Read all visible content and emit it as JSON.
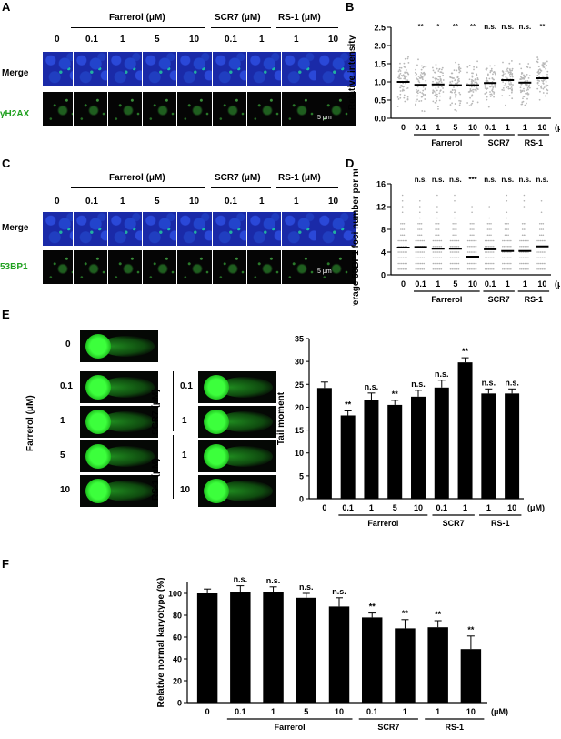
{
  "panels": {
    "A": {
      "label": "A",
      "conc_header": [
        "0",
        "0.1",
        "1",
        "5",
        "10",
        "0.1",
        "1",
        "1",
        "10"
      ],
      "group_farrerol": "Farrerol (μM)",
      "group_scr7": "SCR7 (μM)",
      "group_rs1": "RS-1 (μM)",
      "row_merge": "Merge",
      "row_stain": "γH2AX",
      "scale": "5 μm"
    },
    "C": {
      "label": "C",
      "conc_header": [
        "0",
        "0.1",
        "1",
        "5",
        "10",
        "0.1",
        "1",
        "1",
        "10"
      ],
      "group_farrerol": "Farrerol (μM)",
      "group_scr7": "SCR7 (μM)",
      "group_rs1": "RS-1 (μM)",
      "row_merge": "Merge",
      "row_stain": "53BP1",
      "scale": "5 μm"
    },
    "E": {
      "label": "E",
      "ctrl": "0",
      "farrerol_label": "Farrerol (μM)",
      "farrerol_conc": [
        "0.1",
        "1",
        "5",
        "10"
      ],
      "scr7_label": "SCR7 (μM)",
      "scr7_conc": [
        "0.1",
        "1"
      ],
      "rs1_label": "RS-1 (μM)",
      "rs1_conc": [
        "1",
        "10"
      ]
    },
    "B": {
      "label": "B"
    },
    "D": {
      "label": "D"
    },
    "F": {
      "label": "F"
    }
  },
  "chart_data": [
    {
      "panel": "B",
      "type": "scatter",
      "ylabel": "Relative intensity",
      "ylim": [
        0,
        2.5
      ],
      "yticks": [
        "0.0",
        "0.5",
        "1.0",
        "1.5",
        "2.0",
        "2.5"
      ],
      "categories": [
        "0",
        "0.1",
        "1",
        "5",
        "10",
        "0.1",
        "1",
        "1",
        "10"
      ],
      "unit_label": "(μM)",
      "groups": [
        "Farrerol",
        "SCR7",
        "RS-1"
      ],
      "means": [
        1.0,
        0.92,
        0.93,
        0.91,
        0.91,
        0.97,
        1.05,
        0.98,
        1.1
      ],
      "significance": [
        "",
        "**",
        "*",
        "**",
        "**",
        "n.s.",
        "n.s.",
        "n.s.",
        "**"
      ]
    },
    {
      "panel": "D",
      "type": "scatter",
      "ylabel": "Average 53BP1 foci number per nucleus",
      "ylim": [
        0,
        16
      ],
      "yticks": [
        "0",
        "4",
        "8",
        "12",
        "16"
      ],
      "categories": [
        "0",
        "0.1",
        "1",
        "5",
        "10",
        "0.1",
        "1",
        "1",
        "10"
      ],
      "unit_label": "(μM)",
      "groups": [
        "Farrerol",
        "SCR7",
        "RS-1"
      ],
      "means": [
        4.8,
        4.9,
        4.6,
        4.6,
        3.2,
        4.5,
        4.2,
        4.2,
        5.0
      ],
      "significance": [
        "",
        "n.s.",
        "n.s.",
        "n.s.",
        "***",
        "n.s.",
        "n.s.",
        "n.s.",
        "n.s."
      ]
    },
    {
      "panel": "E",
      "type": "bar",
      "ylabel": "Tail moment",
      "ylim": [
        0,
        35
      ],
      "yticks": [
        "0",
        "5",
        "10",
        "15",
        "20",
        "25",
        "30",
        "35"
      ],
      "categories": [
        "0",
        "0.1",
        "1",
        "5",
        "10",
        "0.1",
        "1",
        "1",
        "10"
      ],
      "unit_label": "(μM)",
      "groups": [
        "Farrerol",
        "SCR7",
        "RS-1"
      ],
      "values": [
        24.2,
        18.2,
        21.5,
        20.5,
        22.3,
        24.3,
        29.8,
        23.0,
        23.0
      ],
      "errors": [
        1.3,
        1.0,
        1.6,
        1.0,
        1.4,
        1.6,
        1.0,
        1.0,
        1.0
      ],
      "significance": [
        "",
        "**",
        "n.s.",
        "**",
        "n.s.",
        "n.s.",
        "**",
        "n.s.",
        "n.s."
      ]
    },
    {
      "panel": "F",
      "type": "bar",
      "ylabel": "Relative normal karyotype (%)",
      "ylim": [
        0,
        110
      ],
      "yticks": [
        "0",
        "20",
        "40",
        "60",
        "80",
        "100"
      ],
      "categories": [
        "0",
        "0.1",
        "1",
        "5",
        "10",
        "0.1",
        "1",
        "1",
        "10"
      ],
      "unit_label": "(μM)",
      "groups": [
        "Farrerol",
        "SCR7",
        "RS-1"
      ],
      "values": [
        100,
        101,
        101,
        96,
        88,
        78,
        68,
        69,
        49
      ],
      "errors": [
        4,
        6,
        5,
        4,
        8,
        4,
        8,
        6,
        12
      ],
      "significance": [
        "",
        "n.s.",
        "n.s.",
        "n.s.",
        "n.s.",
        "**",
        "**",
        "**",
        "**"
      ]
    }
  ]
}
